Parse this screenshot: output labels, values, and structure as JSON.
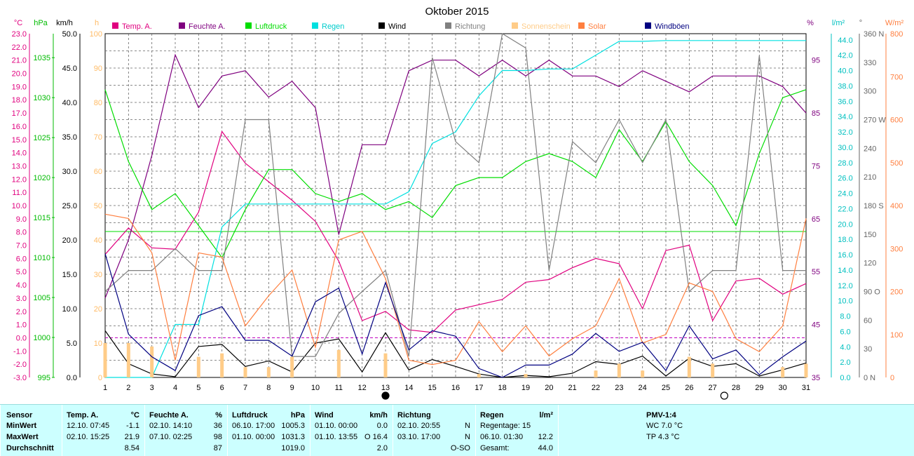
{
  "chart_data": {
    "type": "line",
    "title": "Oktober 2015",
    "x": [
      "1",
      "2",
      "3",
      "4",
      "5",
      "6",
      "7",
      "8",
      "9",
      "10",
      "11",
      "12",
      "13",
      "14",
      "15",
      "16",
      "17",
      "18",
      "19",
      "20",
      "21",
      "22",
      "23",
      "24",
      "25",
      "26",
      "27",
      "28",
      "29",
      "30",
      "31"
    ],
    "axes": {
      "temp": {
        "unit": "°C",
        "min": -3,
        "max": 23,
        "ticks": [
          "23.0",
          "22.0",
          "21.0",
          "20.0",
          "19.0",
          "18.0",
          "17.0",
          "16.0",
          "15.0",
          "14.0",
          "13.0",
          "12.0",
          "11.0",
          "10.0",
          "9.0",
          "8.0",
          "7.0",
          "6.0",
          "5.0",
          "4.0",
          "3.0",
          "2.0",
          "1.0",
          "0.0",
          "-1.0",
          "-2.0",
          "-3.0"
        ]
      },
      "pressure": {
        "unit": "hPa",
        "min": 995,
        "max": 1038,
        "ticks": [
          "1035",
          "1030",
          "1025",
          "1020",
          "1015",
          "1010",
          "1005",
          "1000",
          "995"
        ]
      },
      "wind": {
        "unit": "km/h",
        "min": 0,
        "max": 50,
        "ticks": [
          "50.0",
          "45.0",
          "40.0",
          "35.0",
          "30.0",
          "25.0",
          "20.0",
          "15.0",
          "10.0",
          "5.0",
          "0.0"
        ]
      },
      "sunshine": {
        "unit": "h",
        "min": 0,
        "max": 100,
        "ticks": [
          "100",
          "90",
          "80",
          "70",
          "60",
          "50",
          "40",
          "30",
          "20",
          "10",
          "0"
        ]
      },
      "humidity": {
        "unit": "%",
        "min": 35,
        "max": 100,
        "ticks": [
          "95",
          "85",
          "75",
          "65",
          "55",
          "45",
          "35"
        ]
      },
      "rain": {
        "unit": "l/m²",
        "min": 0,
        "max": 44.8,
        "ticks": [
          "44.0",
          "42.0",
          "40.0",
          "38.0",
          "36.0",
          "34.0",
          "32.0",
          "30.0",
          "28.0",
          "26.0",
          "24.0",
          "22.0",
          "20.0",
          "18.0",
          "16.0",
          "14.0",
          "12.0",
          "10.0",
          "8.0",
          "6.0",
          "4.0",
          "2.0",
          "0.0"
        ]
      },
      "direction": {
        "unit": "°",
        "min": 0,
        "max": 360,
        "ticks": [
          "360 N",
          "330",
          "300",
          "270 W",
          "240",
          "210",
          "180 S",
          "150",
          "120",
          "90 O",
          "60",
          "30",
          "0 N"
        ]
      },
      "solar": {
        "unit": "W/m²",
        "min": 0,
        "max": 800,
        "ticks": [
          "800",
          "700",
          "600",
          "500",
          "400",
          "300",
          "200",
          "100",
          "0"
        ]
      }
    },
    "legend": [
      {
        "name": "Temp. A.",
        "color": "#e0007f"
      },
      {
        "name": "Feuchte A.",
        "color": "#7f007f"
      },
      {
        "name": "Luftdruck",
        "color": "#00dd00"
      },
      {
        "name": "Regen",
        "color": "#00e0e0"
      },
      {
        "name": "Wind",
        "color": "#000000"
      },
      {
        "name": "Richtung",
        "color": "#808080"
      },
      {
        "name": "Sonnenschein",
        "color": "#ffcc88"
      },
      {
        "name": "Solar",
        "color": "#ff7f3f"
      },
      {
        "name": "Windböen",
        "color": "#000080"
      }
    ],
    "series": [
      {
        "name": "Temp. A.",
        "axis": "temp",
        "color": "#e0007f",
        "values": [
          6.3,
          8.3,
          6.8,
          6.7,
          9.5,
          15.6,
          13.2,
          11.8,
          10.4,
          8.8,
          5.8,
          1.3,
          2.0,
          0.6,
          0.4,
          2.1,
          2.5,
          2.9,
          4.2,
          4.4,
          5.3,
          6.0,
          5.6,
          2.2,
          6.6,
          7.0,
          1.3,
          4.3,
          4.5,
          3.3,
          4.1
        ]
      },
      {
        "name": "Feuchte A.",
        "axis": "humidity",
        "color": "#7f007f",
        "values": [
          50,
          61,
          77,
          96,
          86,
          92,
          93,
          88,
          91,
          86,
          62,
          79,
          79,
          93,
          95,
          95,
          92,
          95,
          92,
          95,
          92,
          92,
          90,
          93,
          91,
          89,
          92,
          92,
          92,
          90,
          85
        ]
      },
      {
        "name": "Luftdruck",
        "axis": "pressure",
        "color": "#00dd00",
        "values": [
          1031,
          1022,
          1016,
          1018,
          1014,
          1010,
          1016,
          1021,
          1021,
          1018,
          1017,
          1018,
          1016,
          1017,
          1015,
          1019,
          1020,
          1020,
          1022,
          1023,
          1022,
          1020,
          1026,
          1022,
          1027,
          1022,
          1019,
          1014,
          1023,
          1030,
          1031
        ]
      },
      {
        "name": "Regen",
        "axis": "rain",
        "color": "#00e0e0",
        "values": [
          0,
          0,
          0,
          6.9,
          6.9,
          19.6,
          22.6,
          22.6,
          22.6,
          22.6,
          22.6,
          22.6,
          22.6,
          24.2,
          30.5,
          32.0,
          36.7,
          40.0,
          40.0,
          40.2,
          40.2,
          42.0,
          43.8,
          43.8,
          43.9,
          43.9,
          43.9,
          43.9,
          43.9,
          43.9,
          43.9
        ]
      },
      {
        "name": "Wind",
        "axis": "wind",
        "color": "#000000",
        "values": [
          6.8,
          2.0,
          0.5,
          0.1,
          4.5,
          4.8,
          1.6,
          2.4,
          0.8,
          5.0,
          5.6,
          0.8,
          6.5,
          1.1,
          2.6,
          1.6,
          0.5,
          0.0,
          0.3,
          0.1,
          0.6,
          2.3,
          1.9,
          3.1,
          0.2,
          2.8,
          1.6,
          2.0,
          0.2,
          1.1,
          2.1
        ]
      },
      {
        "name": "Richtung",
        "axis": "direction",
        "color": "#808080",
        "values": [
          90,
          112,
          112,
          135,
          112,
          112,
          270,
          270,
          22,
          22,
          67,
          90,
          112,
          22,
          335,
          247,
          225,
          360,
          345,
          112,
          247,
          225,
          270,
          225,
          270,
          90,
          112,
          112,
          337,
          112,
          112
        ]
      },
      {
        "name": "Sonnenschein",
        "axis": "sunshine",
        "color": "#ffcc88",
        "type": "bar",
        "values": [
          10,
          10,
          9,
          0,
          6,
          7,
          3,
          3,
          6,
          0,
          8,
          0,
          7,
          0,
          0,
          0,
          1,
          0,
          1,
          0,
          0,
          2,
          4,
          2,
          0,
          6,
          4,
          0,
          0,
          3,
          4
        ]
      },
      {
        "name": "Solar",
        "axis": "solar",
        "color": "#ff7f3f",
        "values": [
          380,
          370,
          290,
          40,
          290,
          280,
          120,
          190,
          250,
          70,
          320,
          340,
          230,
          40,
          30,
          40,
          130,
          60,
          120,
          50,
          90,
          120,
          230,
          80,
          100,
          220,
          200,
          90,
          60,
          120,
          370
        ]
      },
      {
        "name": "Windböen",
        "axis": "wind",
        "color": "#000080",
        "values": [
          18.0,
          6.3,
          3.0,
          1.0,
          9.0,
          10.3,
          5.4,
          5.4,
          3.1,
          11.0,
          13.0,
          3.4,
          13.8,
          4.0,
          6.8,
          6.0,
          1.3,
          0.0,
          1.8,
          1.8,
          3.4,
          6.4,
          3.8,
          5.1,
          1.0,
          7.5,
          2.7,
          4.0,
          0.4,
          3.0,
          5.3
        ]
      }
    ],
    "reference_lines": [
      {
        "axis": "pressure",
        "value": 1013.25,
        "color": "#00dd00"
      },
      {
        "axis": "temp",
        "value": 0.0,
        "color": "#c000c0"
      }
    ],
    "grid": true,
    "moon_phases": [
      {
        "day": 13,
        "phase": "new"
      },
      {
        "day": 27.5,
        "phase": "full"
      }
    ]
  },
  "stats": {
    "sensor": {
      "title": "Sensor",
      "rows": [
        "MinWert",
        "MaxWert",
        "Durchschnitt"
      ]
    },
    "temp": {
      "title": "Temp. A.",
      "unit": "°C",
      "min_time": "12.10. 07:45",
      "min": "-1.1",
      "max_time": "02.10. 15:25",
      "max": "21.9",
      "avg": "8.54"
    },
    "humidity": {
      "title": "Feuchte A.",
      "unit": "%",
      "min_time": "02.10. 14:10",
      "min": "36",
      "max_time": "07.10. 02:25",
      "max": "98",
      "avg": "87"
    },
    "pressure": {
      "title": "Luftdruck",
      "unit": "hPa",
      "min_time": "06.10. 17:00",
      "min": "1005.3",
      "max_time": "01.10. 00:00",
      "max": "1031.3",
      "avg": "1019.0"
    },
    "wind": {
      "title": "Wind",
      "unit": "km/h",
      "min_time": "01.10. 00:00",
      "min": "0.0",
      "max_time": "01.10. 13:55",
      "max": "O 16.4",
      "avg": "2.0"
    },
    "direction": {
      "title": "Richtung",
      "min_time": "02.10. 20:55",
      "min": "N",
      "max_time": "03.10. 17:00",
      "max": "N",
      "avg": "O-SO"
    },
    "rain": {
      "title": "Regen",
      "unit": "l/m²",
      "rain_days": "Regentage: 15",
      "max_time": "06.10. 01:30",
      "max": "12.2",
      "total_label": "Gesamt:",
      "total": "44.0"
    },
    "pmv": {
      "title": "PMV-1:4",
      "wc": "WC 7.0 °C",
      "tp": "TP 4.3 °C"
    }
  }
}
